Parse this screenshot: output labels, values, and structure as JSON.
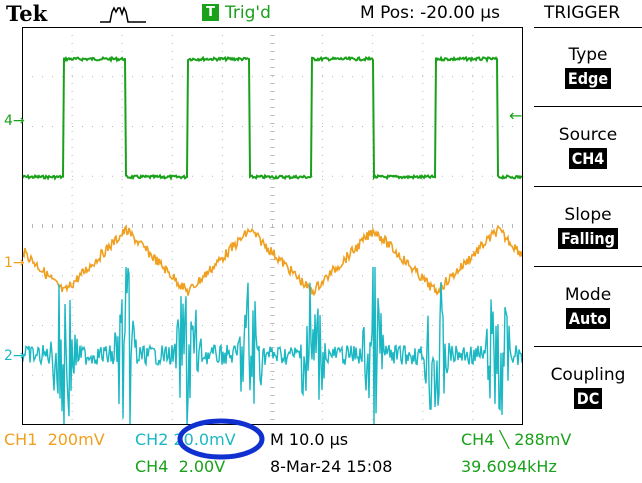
{
  "header": {
    "brand": "Tek",
    "trig_icon": "T",
    "trig_status": "Trig'd",
    "mpos": "M Pos: -20.00 µs",
    "menu_title": "TRIGGER"
  },
  "menu": [
    {
      "label": "Type",
      "value": "Edge"
    },
    {
      "label": "Source",
      "value": "CH4"
    },
    {
      "label": "Slope",
      "value": "Falling"
    },
    {
      "label": "Mode",
      "value": "Auto"
    },
    {
      "label": "Coupling",
      "value": "DC"
    }
  ],
  "channels": {
    "ch1": {
      "name": "CH1",
      "scale": "200mV",
      "marker": "1",
      "color": "#f0a020"
    },
    "ch2": {
      "name": "CH2",
      "scale": "20.0mV",
      "marker": "2",
      "color": "#1bb8c4"
    },
    "ch4": {
      "name": "CH4",
      "scale": "2.00V",
      "marker": "4",
      "color": "#1aa11a"
    }
  },
  "timebase": "M 10.0 µs",
  "datetime": "8-Mar-24 15:08",
  "trigger_readout": {
    "channel": "CH4",
    "slope_symbol": "╲",
    "level": "288mV"
  },
  "frequency": "39.6094kHz",
  "annotation_color": "#1030d0",
  "grid_color": "#b8b8b8"
}
